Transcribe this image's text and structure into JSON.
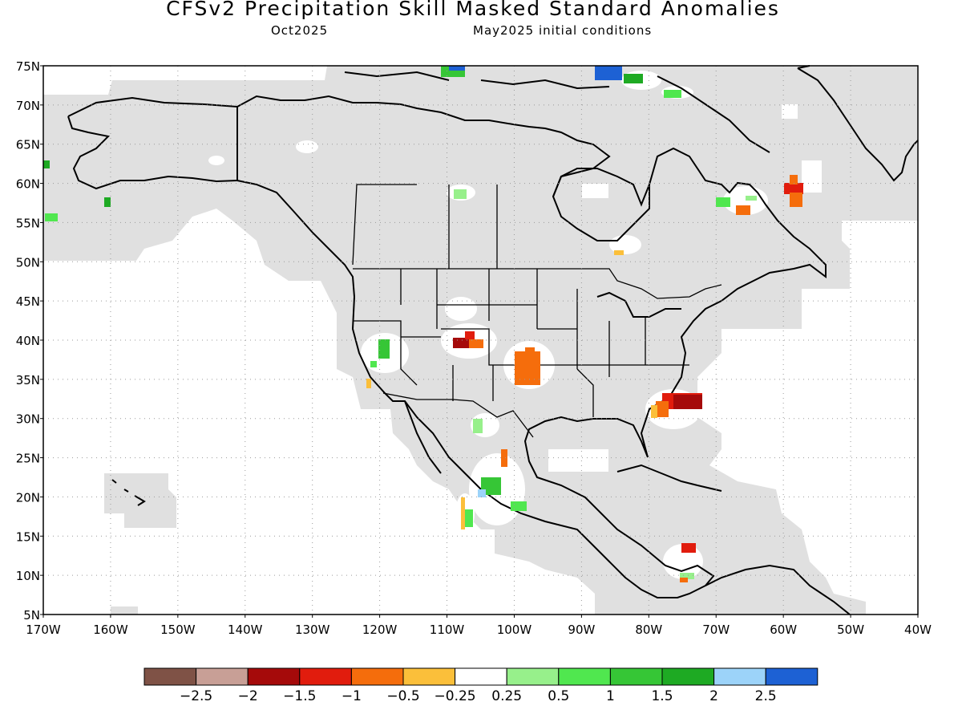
{
  "header": {
    "title": "CFSv2 Precipitation Skill Masked Standard Anomalies",
    "target_month": "Oct2025",
    "init_conditions": "May2025 initial conditions"
  },
  "map": {
    "lon_range": [
      -170,
      -40
    ],
    "lat_range": [
      5,
      75
    ],
    "lat_ticks": [
      "75N",
      "70N",
      "65N",
      "60N",
      "55N",
      "50N",
      "45N",
      "40N",
      "35N",
      "30N",
      "25N",
      "20N",
      "15N",
      "10N",
      "5N"
    ],
    "lon_ticks": [
      "170W",
      "160W",
      "150W",
      "140W",
      "130W",
      "120W",
      "110W",
      "100W",
      "90W",
      "80W",
      "70W",
      "60W",
      "50W",
      "40W"
    ],
    "mask_color": "#e0e0e0",
    "anomaly_patches": [
      {
        "region": "Colorado",
        "lon": -105.5,
        "lat": 39.8,
        "value": -1.5
      },
      {
        "region": "Texas Panhandle / Oklahoma",
        "lon": -99.5,
        "lat": 36.5,
        "value": -1.0
      },
      {
        "region": "off Southeast US coast",
        "lon": -76,
        "lat": 32,
        "value": -2.0
      },
      {
        "region": "Southern California",
        "lon": -119.5,
        "lat": 38.5,
        "value": 1.0
      },
      {
        "region": "west-central Mexico",
        "lon": -104.5,
        "lat": 20.5,
        "value": 1.5
      },
      {
        "region": "Labrador",
        "lon": -59,
        "lat": 58.5,
        "value": -1.5
      },
      {
        "region": "northern Canada islands",
        "lon": -87,
        "lat": 73.5,
        "value": 2.5
      },
      {
        "region": "Caribbean",
        "lon": -74.5,
        "lat": 13.5,
        "value": -1.5
      }
    ]
  },
  "colorbar": {
    "labels": [
      "-2.5",
      "-2",
      "-1.5",
      "-1",
      "-0.5",
      "-0.25",
      "0.25",
      "0.5",
      "1",
      "1.5",
      "2",
      "2.5"
    ],
    "colors": [
      "#7f5246",
      "#c89f96",
      "#a50a0a",
      "#e11c0d",
      "#f56d0c",
      "#fbbf3a",
      "#ffffff",
      "#97f08b",
      "#50e74f",
      "#36c636",
      "#1eaa23",
      "#9cd3f9",
      "#1d61d4"
    ]
  }
}
